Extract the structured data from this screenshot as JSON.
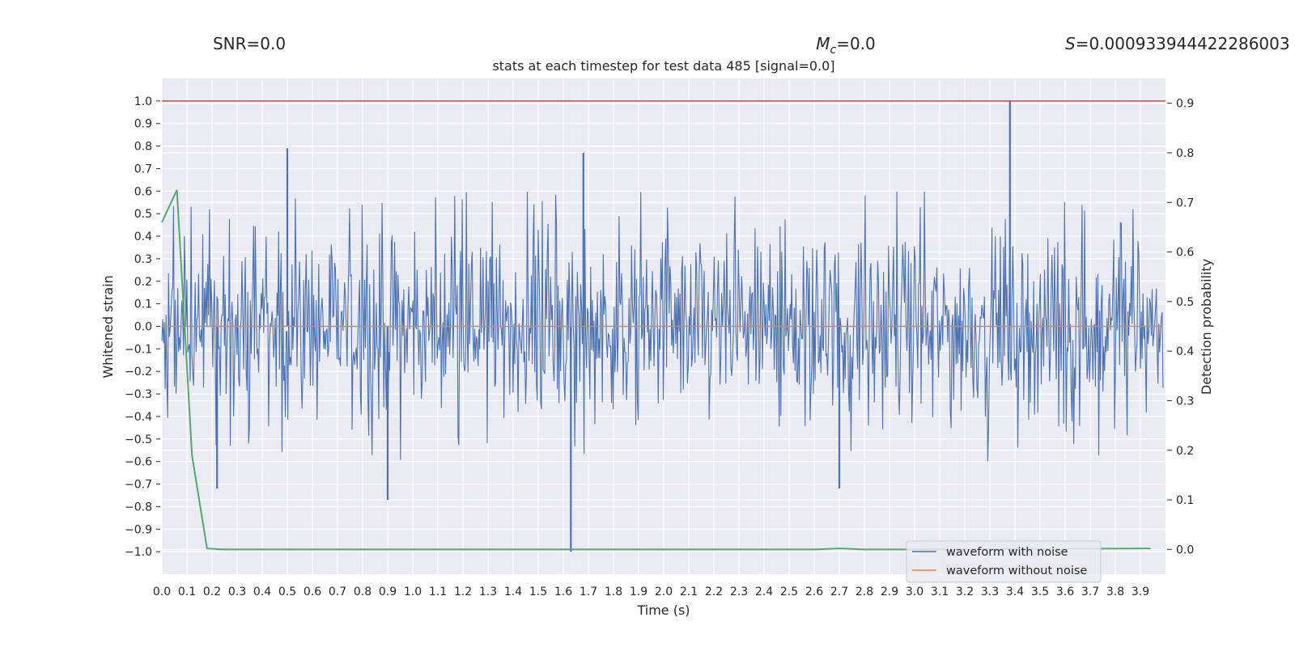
{
  "header": {
    "snr": "SNR=0.0",
    "mc_label": "M",
    "mc_sub": "c",
    "mc_value": "=0.0",
    "s_label": "S",
    "s_value": "=0.000933944422286003"
  },
  "chart_data": {
    "type": "line",
    "title": "stats at each timestep for test data 485 [signal=0.0]",
    "xlabel": "Time (s)",
    "ylabel_left": "Whitened strain",
    "ylabel_right": "Detection probability",
    "xlim": [
      0.0,
      4.0
    ],
    "ylim_left": [
      -1.1,
      1.1
    ],
    "ylim_right": [
      -0.05,
      0.95
    ],
    "x_ticks": [
      0.0,
      0.1,
      0.2,
      0.3,
      0.4,
      0.5,
      0.6,
      0.7,
      0.8,
      0.9,
      1.0,
      1.1,
      1.2,
      1.3,
      1.4,
      1.5,
      1.6,
      1.7,
      1.8,
      1.9,
      2.0,
      2.1,
      2.2,
      2.3,
      2.4,
      2.5,
      2.6,
      2.7,
      2.8,
      2.9,
      3.0,
      3.1,
      3.2,
      3.3,
      3.4,
      3.5,
      3.6,
      3.7,
      3.8,
      3.9
    ],
    "x_tick_labels": [
      "0.0",
      "0.1",
      "0.2",
      "0.3",
      "0.4",
      "0.5",
      "0.6",
      "0.7",
      "0.8",
      "0.9",
      "1.0",
      "1.1",
      "1.2",
      "1.3",
      "1.4",
      "1.5",
      "1.6",
      "1.7",
      "1.8",
      "1.9",
      "2.0",
      "2.1",
      "2.2",
      "2.3",
      "2.4",
      "2.5",
      "2.6",
      "2.7",
      "2.8",
      "2.9",
      "3.0",
      "3.1",
      "3.2",
      "3.3",
      "3.4",
      "3.5",
      "3.6",
      "3.7",
      "3.8",
      "3.9"
    ],
    "y_left_ticks": [
      1.0,
      0.9,
      0.8,
      0.7,
      0.6,
      0.5,
      0.4,
      0.3,
      0.2,
      0.1,
      0.0,
      -0.1,
      -0.2,
      -0.3,
      -0.4,
      -0.5,
      -0.6,
      -0.7,
      -0.8,
      -0.9,
      -1.0
    ],
    "y_left_tick_labels": [
      "1.0",
      "0.9",
      "0.8",
      "0.7",
      "0.6",
      "0.5",
      "0.4",
      "0.3",
      "0.2",
      "0.1",
      "0.0",
      "−0.1",
      "−0.2",
      "−0.3",
      "−0.4",
      "−0.5",
      "−0.6",
      "−0.7",
      "−0.8",
      "−0.9",
      "−1.0"
    ],
    "y_right_ticks": [
      0.9,
      0.8,
      0.7,
      0.6,
      0.5,
      0.4,
      0.3,
      0.2,
      0.1,
      0.0
    ],
    "y_right_tick_labels": [
      "0.9",
      "0.8",
      "0.7",
      "0.6",
      "0.5",
      "0.4",
      "0.3",
      "0.2",
      "0.1",
      "0.0"
    ],
    "grid": true,
    "legend_placement": "lower-right",
    "series": [
      {
        "name": "waveform with noise",
        "axis": "left",
        "color": "#4c72b0",
        "x_range": [
          0.0,
          3.99
        ],
        "approx_envelope": [
          -0.6,
          0.6
        ],
        "notable_peaks": [
          {
            "x": 3.38,
            "y": 1.0
          },
          {
            "x": 1.63,
            "y": -1.0
          },
          {
            "x": 0.5,
            "y": 0.79
          },
          {
            "x": 1.68,
            "y": 0.77
          },
          {
            "x": 0.9,
            "y": -0.77
          },
          {
            "x": 2.7,
            "y": -0.72
          },
          {
            "x": 0.22,
            "y": -0.72
          }
        ]
      },
      {
        "name": "waveform without noise",
        "axis": "left",
        "color": "#dd8452",
        "x": [
          0.0,
          3.99
        ],
        "y": [
          0.0,
          0.0
        ]
      },
      {
        "axis": "right",
        "color": "#55a868",
        "x": [
          0.0,
          0.06,
          0.12,
          0.18,
          0.24,
          0.3,
          2.6,
          2.7,
          2.8,
          3.0,
          3.94
        ],
        "y": [
          0.66,
          0.725,
          0.19,
          0.002,
          0.0,
          0.0,
          0.0,
          0.002,
          0.0,
          0.0,
          0.002
        ]
      }
    ],
    "reference_line": {
      "axis": "left",
      "y": 1.0,
      "color": "#c44e52"
    }
  }
}
